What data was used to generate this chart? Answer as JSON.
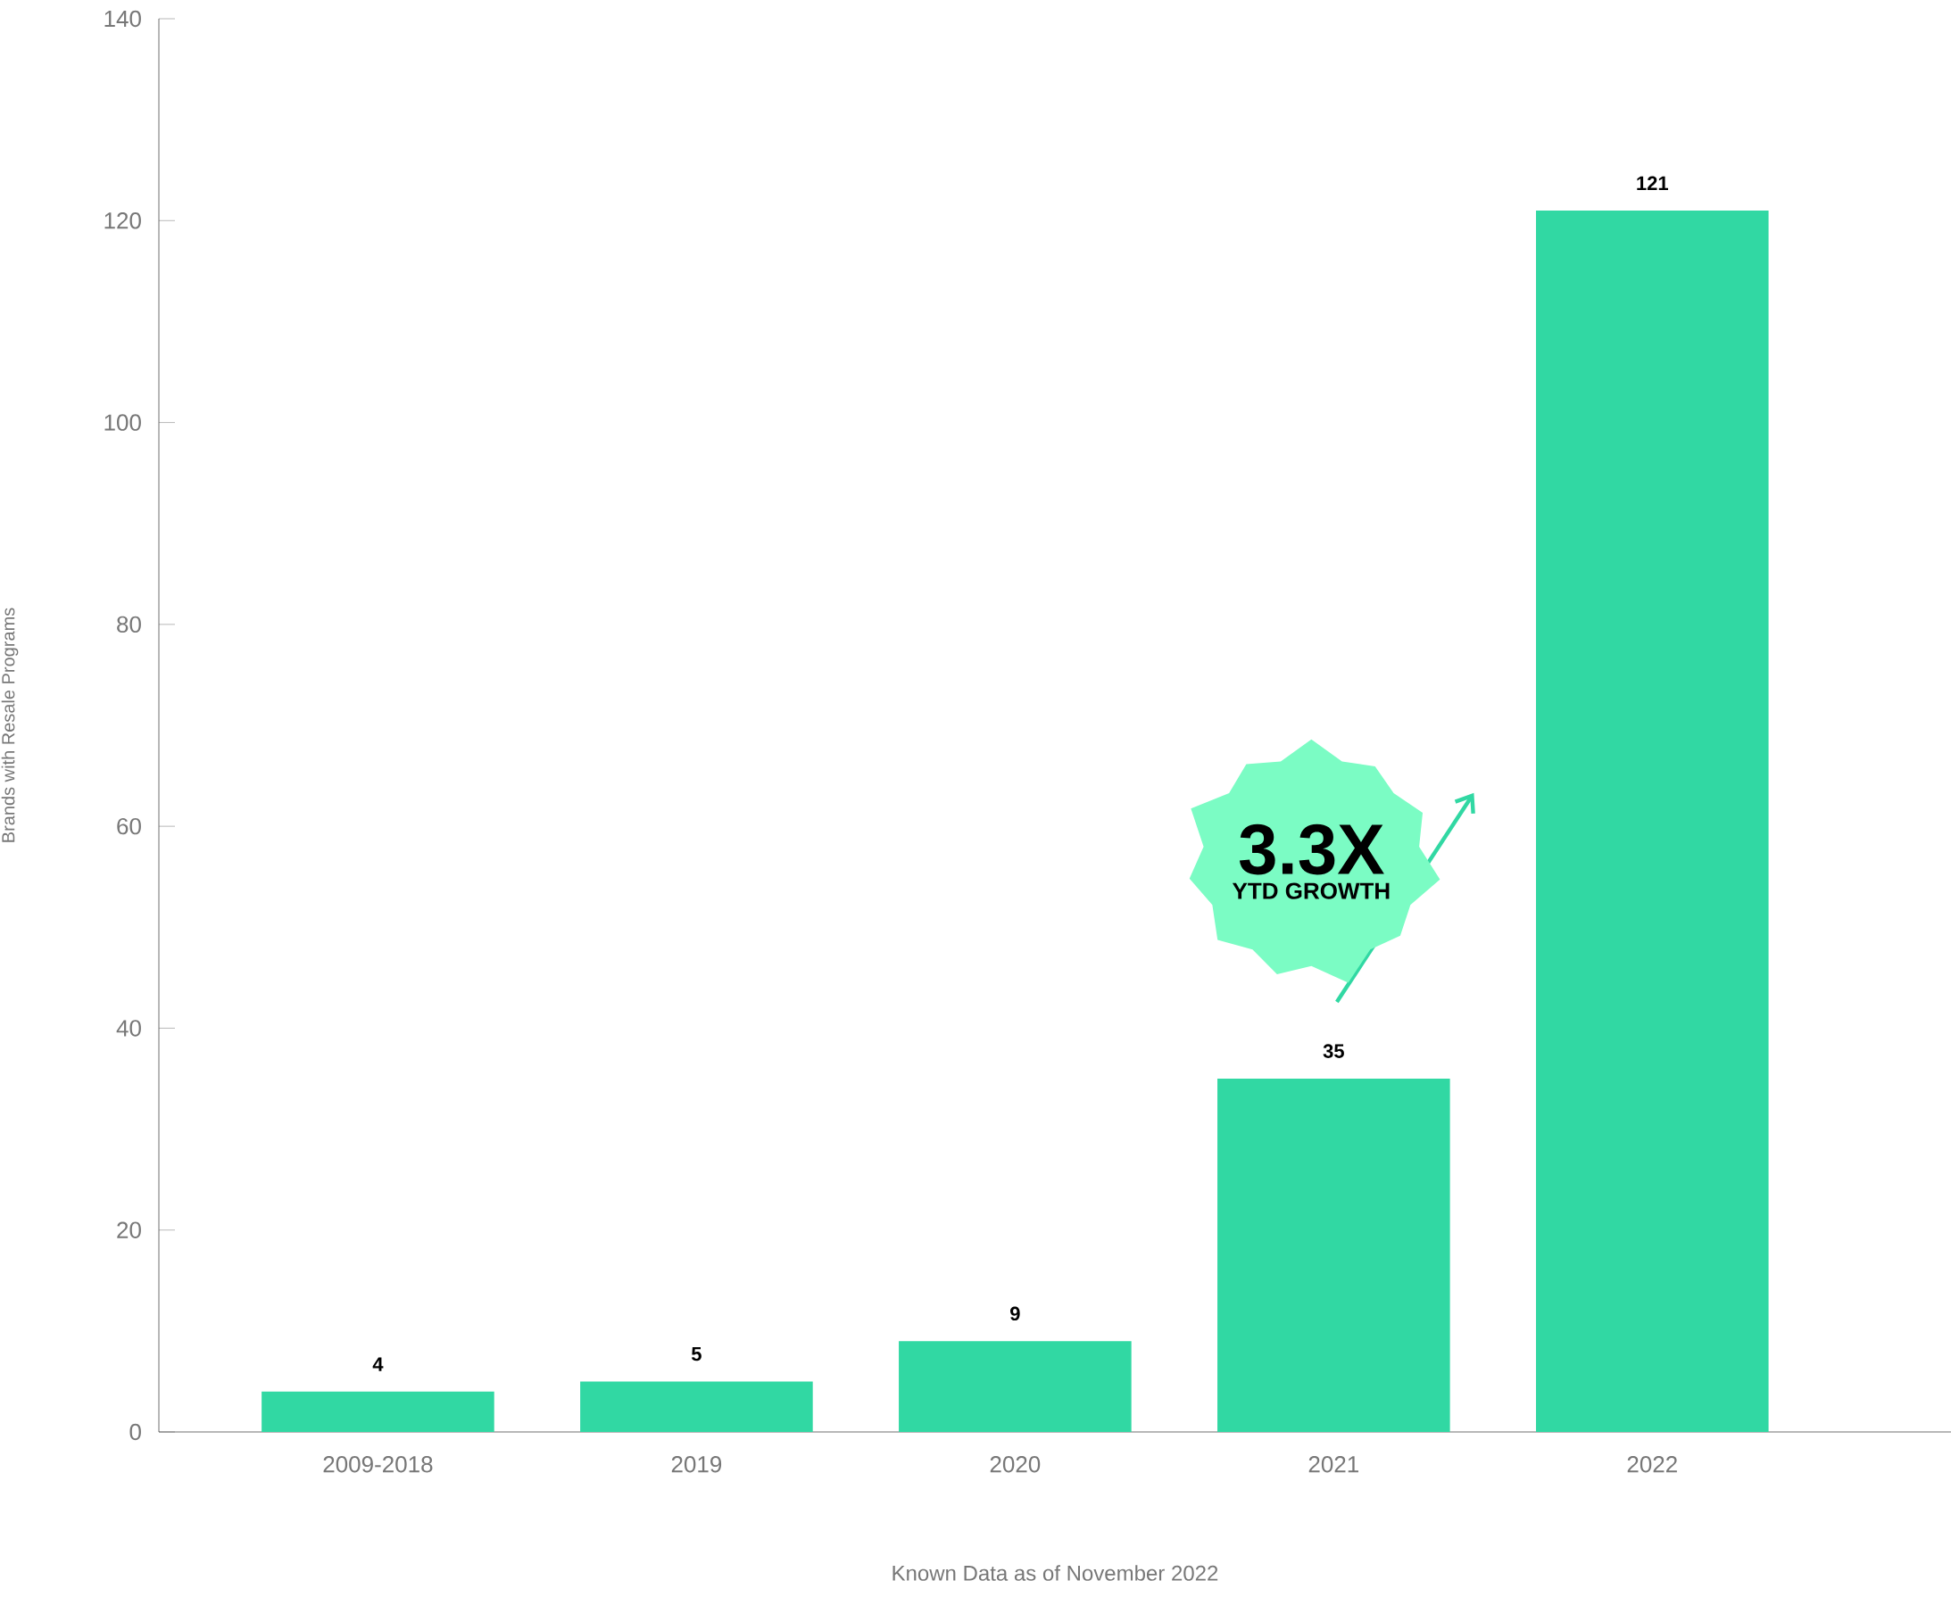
{
  "chart_data": {
    "type": "bar",
    "categories": [
      "2009-2018",
      "2019",
      "2020",
      "2021",
      "2022"
    ],
    "values": [
      4,
      5,
      9,
      35,
      121
    ],
    "color": "#31d8a3",
    "ylim": [
      0,
      140
    ],
    "yticks": [
      0,
      20,
      40,
      60,
      80,
      100,
      120,
      140
    ],
    "ylabel": "Brands with Resale Programs",
    "xlabel": "Known Data as of November 2022",
    "data_labels": true,
    "annotations": [
      "3.3X",
      "YTD GROWTH"
    ]
  }
}
